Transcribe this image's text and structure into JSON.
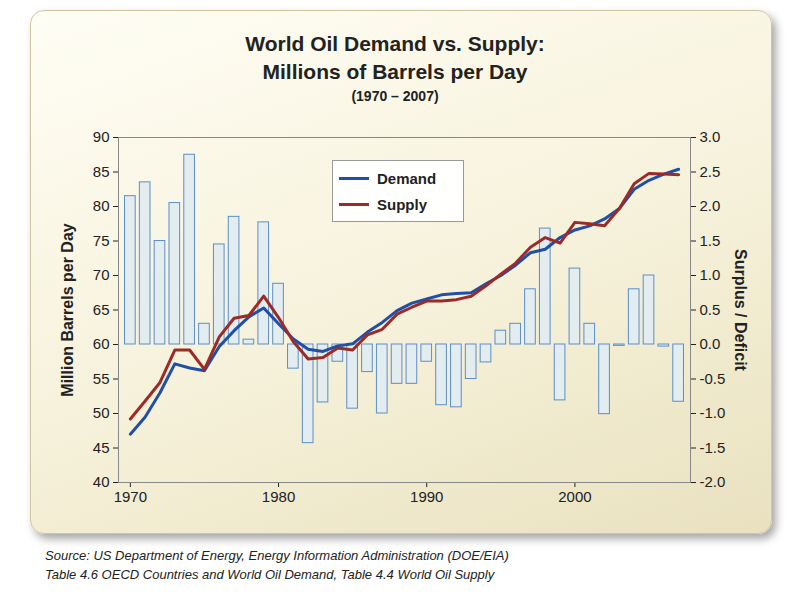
{
  "chart_data": {
    "type": "line",
    "title": "World Oil Demand vs. Supply:\nMillions of Barrels per Day",
    "subtitle": "(1970 – 2007)",
    "ylabel": "Million Barrels per Day",
    "y2label": "Surplus / Deficit",
    "annotations": [
      "Source: US Department of Energy, Energy Information Administration (DOE/EIA)",
      "Table 4.6 OECD Countries and World Oil Demand, Table 4.4 World Oil Supply"
    ],
    "x": [
      1970,
      1971,
      1972,
      1973,
      1974,
      1975,
      1976,
      1977,
      1978,
      1979,
      1980,
      1981,
      1982,
      1983,
      1984,
      1985,
      1986,
      1987,
      1988,
      1989,
      1990,
      1991,
      1992,
      1993,
      1994,
      1995,
      1996,
      1997,
      1998,
      1999,
      2000,
      2001,
      2002,
      2003,
      2004,
      2005,
      2006,
      2007
    ],
    "series": [
      {
        "name": "Demand",
        "color": "#1f4fa8",
        "values": [
          47,
          49.5,
          53,
          57.2,
          56.6,
          56.2,
          59.7,
          62,
          64,
          65.3,
          63,
          60.8,
          59.3,
          59,
          59.8,
          60.1,
          61.8,
          63.2,
          64.9,
          66,
          66.6,
          67.2,
          67.4,
          67.5,
          68.8,
          70,
          71.5,
          73.3,
          73.8,
          75.5,
          76.6,
          77.2,
          78.2,
          79.7,
          82.5,
          83.8,
          84.7,
          85.4
        ]
      },
      {
        "name": "Supply",
        "color": "#9c2b27",
        "values": [
          49.2,
          51.8,
          54.5,
          59.2,
          59.2,
          56.4,
          61.1,
          63.8,
          64.2,
          67,
          63.9,
          60.4,
          57.9,
          58.1,
          59.5,
          59.2,
          61.4,
          62.2,
          64.4,
          65.4,
          66.3,
          66.3,
          66.5,
          67,
          68.5,
          70.2,
          71.8,
          74.1,
          75.5,
          74.7,
          77.7,
          77.5,
          77.2,
          79.7,
          83.3,
          84.8,
          84.7,
          84.6
        ]
      },
      {
        "type": "bar",
        "axis": "y2",
        "color": "#5b8fc7",
        "values": [
          2.15,
          2.35,
          1.5,
          2.05,
          2.75,
          0.3,
          1.45,
          1.85,
          0.07,
          1.77,
          0.88,
          -0.35,
          -1.43,
          -0.84,
          -0.25,
          -0.93,
          -0.4,
          -1.0,
          -0.57,
          -0.57,
          -0.25,
          -0.88,
          -0.91,
          -0.5,
          -0.26,
          0.2,
          0.3,
          0.8,
          1.68,
          -0.81,
          1.1,
          0.3,
          -1.01,
          -0.02,
          0.8,
          1.0,
          -0.03,
          -0.83
        ]
      }
    ],
    "xlim": [
      1969.2,
      2007.8
    ],
    "xticks": [
      1970,
      1980,
      1990,
      2000
    ],
    "ylim": [
      40,
      90
    ],
    "yticks": [
      40,
      45,
      50,
      55,
      60,
      65,
      70,
      75,
      80,
      85,
      90
    ],
    "y2lim": [
      -2,
      3
    ],
    "y2ticks": [
      {
        "value": -2,
        "label": "-2.0"
      },
      {
        "value": -1.5,
        "label": "-1.5"
      },
      {
        "value": -1,
        "label": "-1.0"
      },
      {
        "value": -0.5,
        "label": "-0.5"
      },
      {
        "value": 0,
        "label": "0.0"
      },
      {
        "value": 0.5,
        "label": "0.5"
      },
      {
        "value": 1,
        "label": "1.0"
      },
      {
        "value": 1.5,
        "label": "1.5"
      },
      {
        "value": 2,
        "label": "2.0"
      },
      {
        "value": 2.5,
        "label": "2.5"
      },
      {
        "value": 3,
        "label": "3.0"
      }
    ],
    "legend": "top",
    "grid": false
  }
}
